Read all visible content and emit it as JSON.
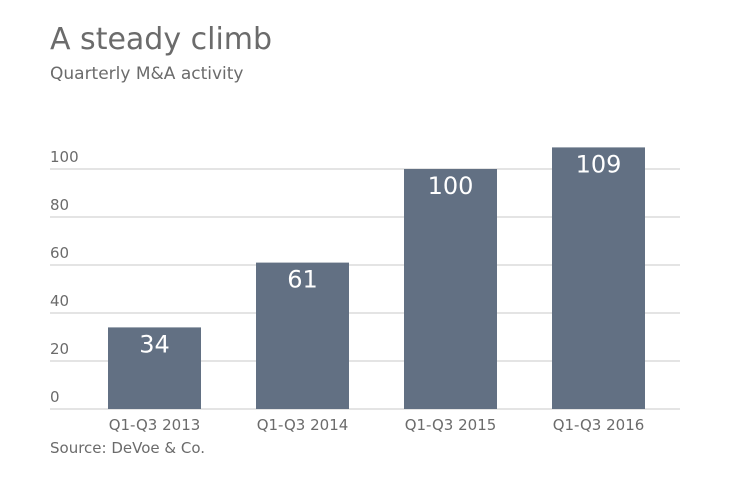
{
  "chart_data": {
    "type": "bar",
    "title": "A steady climb",
    "subtitle": "Quarterly M&A activity",
    "source": "Source: DeVoe & Co.",
    "categories": [
      "Q1-Q3 2013",
      "Q1-Q3 2014",
      "Q1-Q3 2015",
      "Q1-Q3 2016"
    ],
    "values": [
      34,
      61,
      100,
      109
    ],
    "yticks": [
      0,
      20,
      40,
      60,
      80,
      100
    ],
    "ylim": [
      0,
      100
    ],
    "grid": true,
    "bar_color": "#627083",
    "xlabel": "",
    "ylabel": ""
  }
}
